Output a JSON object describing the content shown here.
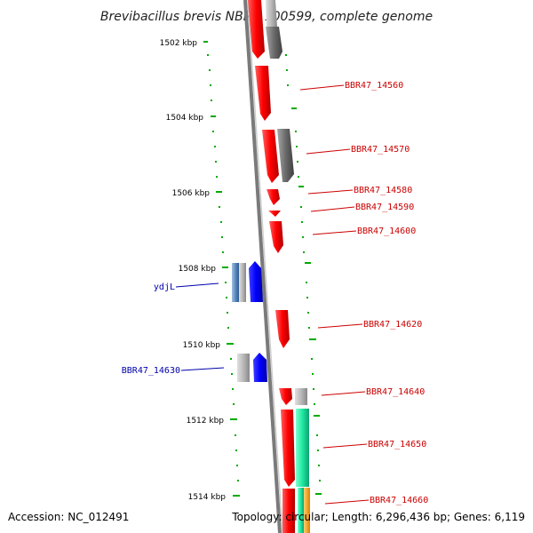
{
  "title": "Brevibacillus brevis NBRC 100599, complete genome",
  "accession": "Accession: NC_012491",
  "topology": "Topology: circular; Length: 6,296,436 bp; Genes: 6,119",
  "colors": {
    "forward": "#ff0000",
    "reverse": "#0000ff",
    "grey": "#808080",
    "cyan_green": "#1ee8a0",
    "steel_blue": "#5a8ac0",
    "orange": "#f0a020",
    "axis_tick": "#00aa00",
    "label_red": "#cc0000",
    "label_blue": "#0000aa",
    "backbone": "#808080"
  },
  "ticks": [
    "1502 kbp",
    "1504 kbp",
    "1506 kbp",
    "1508 kbp",
    "1510 kbp",
    "1512 kbp",
    "1514 kbp"
  ],
  "labels_right": [
    "BBR47_14560",
    "BBR47_14570",
    "BBR47_14580",
    "BBR47_14590",
    "BBR47_14600",
    "BBR47_14620",
    "BBR47_14640",
    "BBR47_14650",
    "BBR47_14660"
  ],
  "labels_left": [
    "ydjL",
    "BBR47_14630"
  ]
}
